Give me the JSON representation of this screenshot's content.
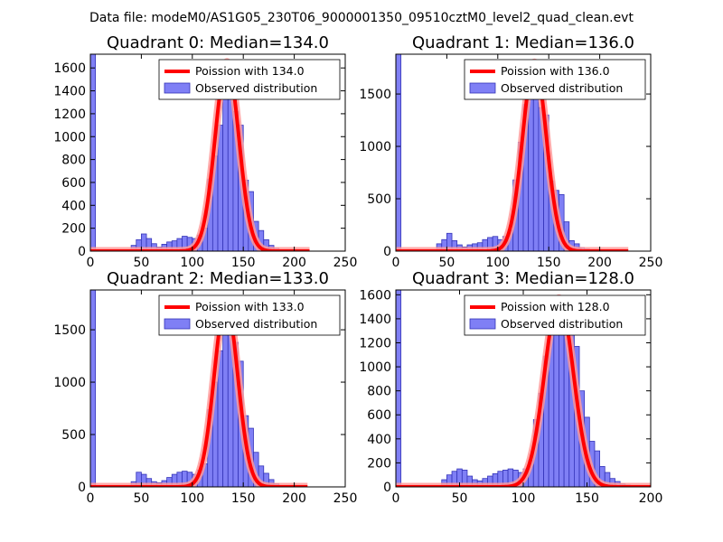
{
  "suptitle": "Data file: modeM0/AS1G05_230T06_9000001350_09510cztM0_level2_quad_clean.evt",
  "colors": {
    "bar_fill": "#7f7ff5",
    "bar_edge": "#3434b8",
    "curve": "#ff0000",
    "curve_faded": "#ff9a9a"
  },
  "chart_data": [
    {
      "type": "bar",
      "title": "Quadrant 0: Median=134.0",
      "xlim": [
        0,
        250
      ],
      "ylim": [
        0,
        1720
      ],
      "xticks": [
        0,
        50,
        100,
        150,
        200,
        250
      ],
      "yticks": [
        0,
        200,
        400,
        600,
        800,
        1000,
        1200,
        1400,
        1600
      ],
      "bin_width": 5,
      "legend": [
        "Poission with 134.0",
        "Observed distribution"
      ],
      "poisson_mean": 134,
      "curve_peak": 1650,
      "curve_x": [
        0,
        215
      ],
      "bins": [
        [
          0,
          1720
        ],
        [
          5,
          0
        ],
        [
          10,
          0
        ],
        [
          15,
          0
        ],
        [
          20,
          0
        ],
        [
          25,
          0
        ],
        [
          30,
          0
        ],
        [
          35,
          0
        ],
        [
          40,
          50
        ],
        [
          45,
          100
        ],
        [
          50,
          150
        ],
        [
          55,
          110
        ],
        [
          60,
          65
        ],
        [
          65,
          35
        ],
        [
          70,
          60
        ],
        [
          75,
          80
        ],
        [
          80,
          90
        ],
        [
          85,
          110
        ],
        [
          90,
          130
        ],
        [
          95,
          120
        ],
        [
          100,
          110
        ],
        [
          105,
          140
        ],
        [
          110,
          200
        ],
        [
          115,
          630
        ],
        [
          120,
          830
        ],
        [
          125,
          1100
        ],
        [
          130,
          1580
        ],
        [
          135,
          1590
        ],
        [
          140,
          1220
        ],
        [
          145,
          1100
        ],
        [
          150,
          620
        ],
        [
          155,
          520
        ],
        [
          160,
          260
        ],
        [
          165,
          180
        ],
        [
          170,
          100
        ],
        [
          175,
          50
        ],
        [
          180,
          25
        ],
        [
          185,
          10
        ],
        [
          190,
          5
        ],
        [
          195,
          3
        ],
        [
          200,
          0
        ],
        [
          205,
          0
        ],
        [
          210,
          0
        ]
      ]
    },
    {
      "type": "bar",
      "title": "Quadrant 1: Median=136.0",
      "xlim": [
        0,
        250
      ],
      "ylim": [
        0,
        1880
      ],
      "xticks": [
        0,
        50,
        100,
        150,
        200,
        250
      ],
      "yticks": [
        0,
        500,
        1000,
        1500
      ],
      "bin_width": 5,
      "legend": [
        "Poission with 136.0",
        "Observed distribution"
      ],
      "poisson_mean": 136,
      "curve_peak": 1800,
      "curve_x": [
        0,
        228
      ],
      "bins": [
        [
          0,
          1880
        ],
        [
          5,
          0
        ],
        [
          10,
          0
        ],
        [
          15,
          0
        ],
        [
          20,
          0
        ],
        [
          25,
          0
        ],
        [
          30,
          0
        ],
        [
          35,
          0
        ],
        [
          40,
          70
        ],
        [
          45,
          110
        ],
        [
          50,
          170
        ],
        [
          55,
          100
        ],
        [
          60,
          60
        ],
        [
          65,
          40
        ],
        [
          70,
          60
        ],
        [
          75,
          70
        ],
        [
          80,
          80
        ],
        [
          85,
          110
        ],
        [
          90,
          130
        ],
        [
          95,
          140
        ],
        [
          100,
          110
        ],
        [
          105,
          140
        ],
        [
          110,
          200
        ],
        [
          115,
          680
        ],
        [
          120,
          1040
        ],
        [
          125,
          1400
        ],
        [
          130,
          1580
        ],
        [
          135,
          1720
        ],
        [
          140,
          1370
        ],
        [
          145,
          1300
        ],
        [
          150,
          670
        ],
        [
          155,
          580
        ],
        [
          160,
          540
        ],
        [
          165,
          280
        ],
        [
          170,
          100
        ],
        [
          175,
          70
        ],
        [
          180,
          35
        ],
        [
          185,
          20
        ],
        [
          190,
          10
        ],
        [
          195,
          5
        ],
        [
          200,
          3
        ],
        [
          205,
          0
        ],
        [
          210,
          0
        ]
      ]
    },
    {
      "type": "bar",
      "title": "Quadrant 2: Median=133.0",
      "xlim": [
        0,
        250
      ],
      "ylim": [
        0,
        1880
      ],
      "xticks": [
        0,
        50,
        100,
        150,
        200,
        250
      ],
      "yticks": [
        0,
        500,
        1000,
        1500
      ],
      "bin_width": 5,
      "legend": [
        "Poission with 133.0",
        "Observed distribution"
      ],
      "poisson_mean": 133,
      "curve_peak": 1760,
      "curve_x": [
        0,
        213
      ],
      "bins": [
        [
          0,
          1880
        ],
        [
          5,
          0
        ],
        [
          10,
          0
        ],
        [
          15,
          0
        ],
        [
          20,
          0
        ],
        [
          25,
          0
        ],
        [
          30,
          0
        ],
        [
          35,
          0
        ],
        [
          40,
          50
        ],
        [
          45,
          140
        ],
        [
          50,
          120
        ],
        [
          55,
          80
        ],
        [
          60,
          50
        ],
        [
          65,
          40
        ],
        [
          70,
          60
        ],
        [
          75,
          90
        ],
        [
          80,
          120
        ],
        [
          85,
          140
        ],
        [
          90,
          150
        ],
        [
          95,
          140
        ],
        [
          100,
          120
        ],
        [
          105,
          160
        ],
        [
          110,
          220
        ],
        [
          115,
          740
        ],
        [
          120,
          1000
        ],
        [
          125,
          1300
        ],
        [
          130,
          1650
        ],
        [
          135,
          1700
        ],
        [
          140,
          1380
        ],
        [
          145,
          1200
        ],
        [
          150,
          680
        ],
        [
          155,
          560
        ],
        [
          160,
          330
        ],
        [
          165,
          200
        ],
        [
          170,
          130
        ],
        [
          175,
          70
        ],
        [
          180,
          30
        ],
        [
          185,
          10
        ],
        [
          190,
          5
        ],
        [
          195,
          2
        ],
        [
          200,
          0
        ],
        [
          205,
          0
        ],
        [
          210,
          0
        ]
      ]
    },
    {
      "type": "bar",
      "title": "Quadrant 3: Median=128.0",
      "xlim": [
        0,
        200
      ],
      "ylim": [
        0,
        1640
      ],
      "xticks": [
        0,
        50,
        100,
        150,
        200
      ],
      "yticks": [
        0,
        200,
        400,
        600,
        800,
        1000,
        1200,
        1400,
        1600
      ],
      "bin_width": 4,
      "legend": [
        "Poission with 128.0",
        "Observed distribution"
      ],
      "poisson_mean": 128,
      "curve_peak": 1570,
      "curve_x": [
        0,
        200
      ],
      "bins": [
        [
          0,
          1640
        ],
        [
          4,
          0
        ],
        [
          8,
          0
        ],
        [
          12,
          0
        ],
        [
          16,
          0
        ],
        [
          20,
          0
        ],
        [
          24,
          0
        ],
        [
          28,
          0
        ],
        [
          32,
          0
        ],
        [
          36,
          60
        ],
        [
          40,
          100
        ],
        [
          44,
          130
        ],
        [
          48,
          150
        ],
        [
          52,
          140
        ],
        [
          56,
          90
        ],
        [
          60,
          60
        ],
        [
          64,
          50
        ],
        [
          68,
          70
        ],
        [
          72,
          90
        ],
        [
          76,
          110
        ],
        [
          80,
          130
        ],
        [
          84,
          140
        ],
        [
          88,
          150
        ],
        [
          92,
          140
        ],
        [
          96,
          120
        ],
        [
          100,
          150
        ],
        [
          104,
          220
        ],
        [
          108,
          560
        ],
        [
          112,
          780
        ],
        [
          116,
          1090
        ],
        [
          120,
          1330
        ],
        [
          124,
          1480
        ],
        [
          128,
          1520
        ],
        [
          132,
          1490
        ],
        [
          136,
          1300
        ],
        [
          140,
          1170
        ],
        [
          144,
          800
        ],
        [
          148,
          580
        ],
        [
          152,
          380
        ],
        [
          156,
          300
        ],
        [
          160,
          170
        ],
        [
          164,
          120
        ],
        [
          168,
          70
        ],
        [
          172,
          45
        ],
        [
          176,
          25
        ],
        [
          180,
          15
        ],
        [
          184,
          5
        ],
        [
          188,
          2
        ]
      ]
    }
  ]
}
